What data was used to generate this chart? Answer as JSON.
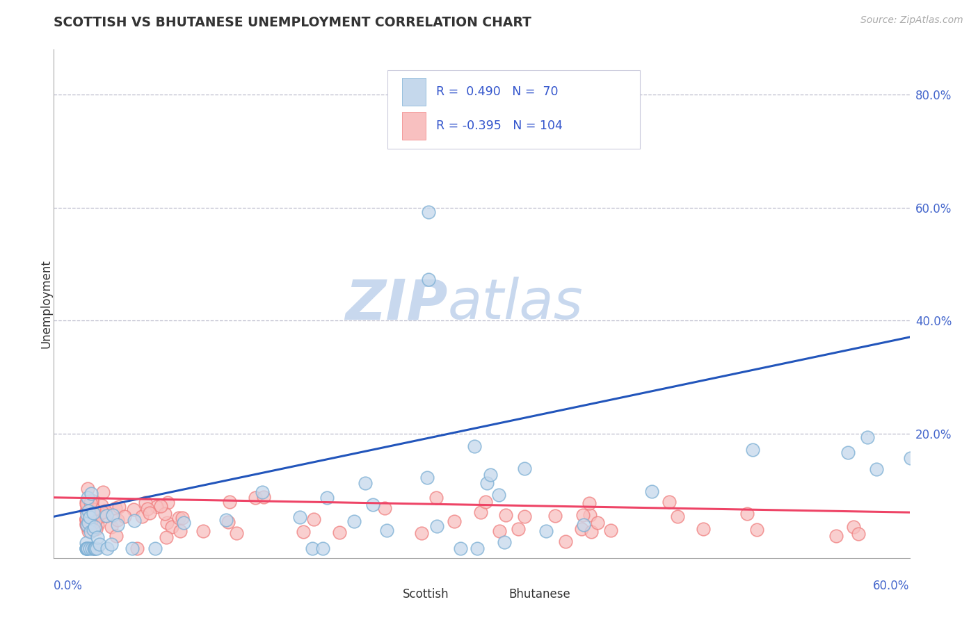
{
  "title": "SCOTTISH VS BHUTANESE UNEMPLOYMENT CORRELATION CHART",
  "source": "Source: ZipAtlas.com",
  "ylabel": "Unemployment",
  "ytick_vals": [
    0.2,
    0.4,
    0.6,
    0.8
  ],
  "ytick_labels": [
    "20.0%",
    "40.0%",
    "60.0%",
    "80.0%"
  ],
  "xlim": [
    0.0,
    0.62
  ],
  "ylim": [
    -0.02,
    0.88
  ],
  "scatter_color_scottish": "#7BAFD4",
  "scatter_fill_scottish": "#C5D8EC",
  "scatter_color_bhutanese": "#F08080",
  "scatter_fill_bhutanese": "#F8C0C0",
  "line_color_scottish": "#2255BB",
  "line_color_bhutanese": "#EE4466",
  "watermark_color": "#C8D8EE",
  "title_color": "#333333",
  "axis_label_color": "#4466CC",
  "legend_text_color": "#3355CC",
  "background_color": "#FFFFFF",
  "grid_color": "#BBBBCC",
  "source_color": "#AAAAAA"
}
